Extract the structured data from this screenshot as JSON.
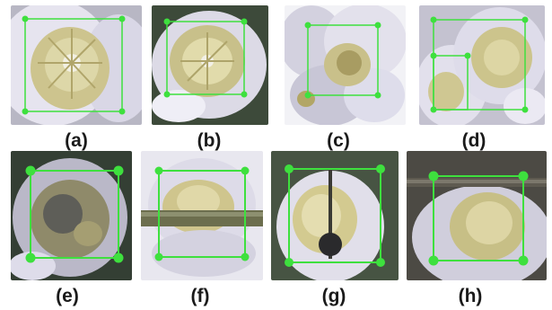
{
  "figure": {
    "captions": {
      "a": "(a)",
      "b": "(b)",
      "c": "(c)",
      "d": "(d)",
      "e": "(e)",
      "f": "(f)",
      "g": "(g)",
      "h": "(h)"
    },
    "colors": {
      "box_green": "#3ee03e",
      "petal": "#e4e2ef",
      "center": "#cfc994",
      "background_dark": "#3d4a3a"
    }
  }
}
